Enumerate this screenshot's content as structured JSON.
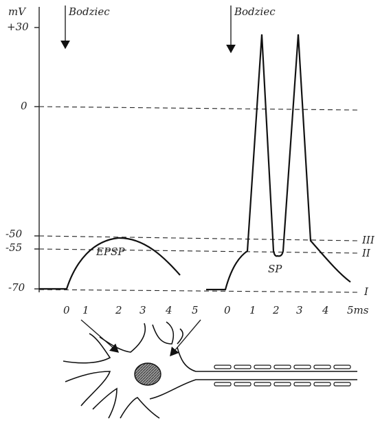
{
  "diagram": {
    "y_unit": "mV",
    "y_labels": [
      "+30",
      "0",
      "-50",
      "-55",
      "-70"
    ],
    "level_labels": [
      "III",
      "II",
      "I"
    ],
    "stimulus_labels": [
      "Bodziec",
      "Bodziec"
    ],
    "curve_labels": [
      "EPSP",
      "SP"
    ],
    "x_labels_left": [
      "0",
      "1",
      "2",
      "3",
      "4",
      "5"
    ],
    "x_labels_right": [
      "0",
      "1",
      "2",
      "3",
      "4",
      "5ms"
    ]
  }
}
